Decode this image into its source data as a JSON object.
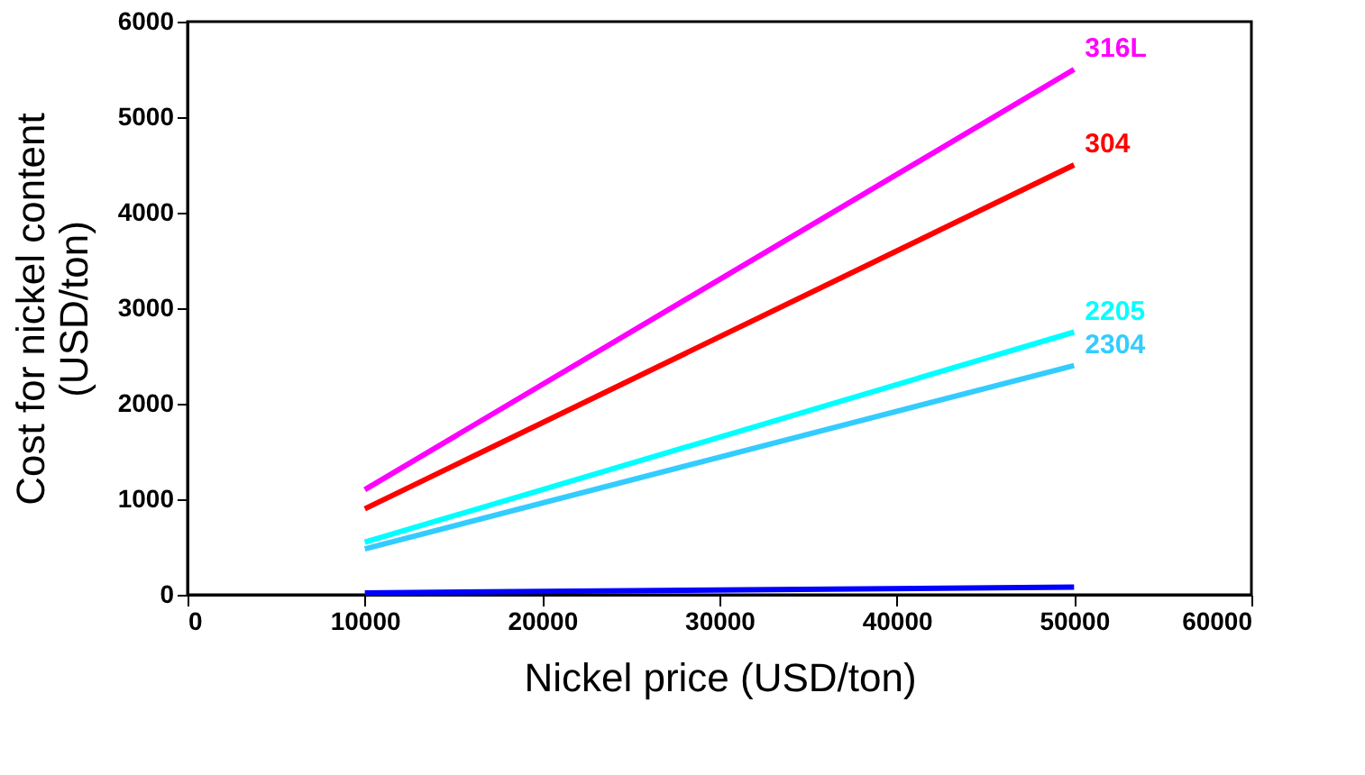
{
  "chart_data": {
    "type": "line",
    "xlabel": "Nickel price (USD/ton)",
    "ylabel": "Cost for nickel content (USD/ton)",
    "x": [
      10000,
      50000
    ],
    "xlim": [
      0,
      60000
    ],
    "xticks": [
      0,
      10000,
      20000,
      30000,
      40000,
      50000,
      60000
    ],
    "ylim": [
      0,
      6000
    ],
    "yticks": [
      0,
      1000,
      2000,
      3000,
      4000,
      5000,
      6000
    ],
    "grid": false,
    "legend": false,
    "marker": "none",
    "line_style": "solid",
    "series": [
      {
        "name": "316L",
        "color": "#ff00ff",
        "values": [
          1100,
          5500
        ]
      },
      {
        "name": "304",
        "color": "#ff0000",
        "values": [
          900,
          4500
        ]
      },
      {
        "name": "2205",
        "color": "#00ffff",
        "values": [
          550,
          2750
        ]
      },
      {
        "name": "2304",
        "color": "#33ccff",
        "values": [
          480,
          2400
        ]
      },
      {
        "color": "#0000ff",
        "values": [
          20,
          80
        ]
      }
    ]
  }
}
